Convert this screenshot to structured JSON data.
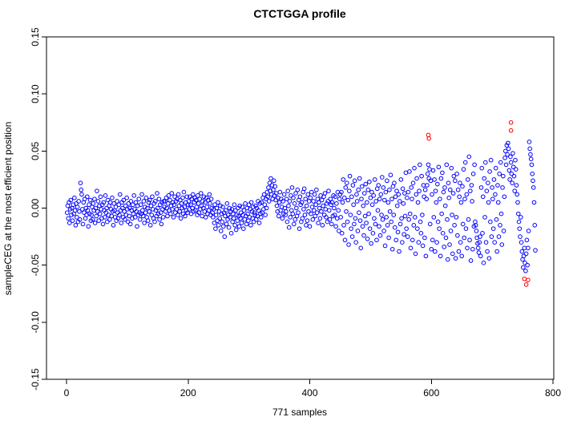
{
  "figure": {
    "title": "CTCTGGA profile"
  },
  "chart_data": {
    "type": "scatter",
    "title": "CTCTGGA profile",
    "xlabel": "771 samples",
    "ylabel": "sampleCEG at the most efficient position",
    "xlim": [
      0,
      800
    ],
    "ylim": [
      -0.15,
      0.15
    ],
    "x_ticks": [
      0,
      200,
      400,
      600,
      800
    ],
    "x_tick_labels": [
      "0",
      "200",
      "400",
      "600",
      "800"
    ],
    "y_ticks": [
      -0.15,
      -0.1,
      -0.05,
      0.0,
      0.05,
      0.1,
      0.15
    ],
    "y_tick_labels": [
      "-0.15",
      "-0.10",
      "-0.05",
      "0.00",
      "0.05",
      "0.10",
      "0.15"
    ],
    "grid": false,
    "legend": "none",
    "marker": "open-circle",
    "n_samples": 771,
    "series": [
      {
        "name": "samples",
        "color": "#0000FF",
        "x_start": 1,
        "y_scale": 0.001,
        "y": [
          -4,
          2,
          -9,
          5,
          -13,
          -1,
          7,
          -6,
          0,
          -11,
          3,
          -5,
          9,
          -2,
          -15,
          4,
          -8,
          1,
          -12,
          6,
          -3,
          -10,
          22,
          16,
          12,
          -1,
          -14,
          5,
          -4,
          8,
          -9,
          0,
          -6,
          10,
          -2,
          -16,
          3,
          -5,
          7,
          -11,
          -6,
          1,
          -10,
          4,
          -2,
          8,
          -13,
          0,
          -7,
          15,
          -3,
          6,
          -11,
          2,
          -5,
          10,
          -1,
          -9,
          3,
          -14,
          5,
          -2,
          -8,
          11,
          -4,
          0,
          -12,
          7,
          -6,
          2,
          -10,
          5,
          -1,
          -7,
          9,
          -3,
          -15,
          4,
          -2,
          -8,
          1,
          -11,
          6,
          -4,
          -9,
          3,
          -6,
          12,
          -2,
          -13,
          5,
          0,
          -8,
          7,
          -3,
          -10,
          2,
          -6,
          9,
          -1,
          -12,
          4,
          -7,
          0,
          -14,
          6,
          -2,
          -9,
          3,
          -5,
          11,
          -1,
          -8,
          5,
          -3,
          -16,
          2,
          -6,
          8,
          -4,
          -10,
          3,
          -5,
          12,
          -2,
          -7,
          6,
          -13,
          1,
          -4,
          9,
          -8,
          0,
          -11,
          5,
          -3,
          7,
          -15,
          2,
          -6,
          10,
          -1,
          -9,
          4,
          -12,
          6,
          -2,
          -7,
          13,
          0,
          -5,
          8,
          -10,
          3,
          -4,
          -14,
          5,
          -1,
          -8,
          6,
          1,
          6,
          -3,
          9,
          0,
          -7,
          4,
          11,
          -2,
          7,
          -5,
          2,
          13,
          -1,
          5,
          -8,
          3,
          10,
          -4,
          6,
          -1,
          8,
          -6,
          12,
          2,
          -3,
          7,
          -9,
          4,
          0,
          9,
          -5,
          14,
          1,
          -7,
          5,
          -2,
          10,
          -4,
          3,
          6,
          -1,
          10,
          3,
          -5,
          8,
          0,
          12,
          -3,
          5,
          9,
          -2,
          7,
          1,
          -6,
          11,
          4,
          -4,
          8,
          -1,
          13,
          2,
          -7,
          6,
          0,
          10,
          -3,
          5,
          -8,
          9,
          1,
          -5,
          7,
          -2,
          12,
          4,
          -6,
          8,
          0,
          -4,
          -8,
          -1,
          -13,
          3,
          -18,
          -6,
          0,
          -11,
          5,
          -15,
          -3,
          -9,
          2,
          -20,
          -5,
          -12,
          1,
          -16,
          -4,
          -25,
          -7,
          -2,
          -14,
          4,
          -10,
          -6,
          -17,
          0,
          -8,
          -3,
          -22,
          -1,
          -12,
          -5,
          -9,
          3,
          -15,
          -2,
          -19,
          -6,
          -11,
          0,
          -7,
          -16,
          2,
          -9,
          -4,
          -13,
          1,
          -6,
          -18,
          -2,
          -10,
          4,
          -7,
          -14,
          0,
          -5,
          -11,
          3,
          -8,
          -1,
          -15,
          5,
          -3,
          -9,
          1,
          -12,
          -4,
          -6,
          2,
          -10,
          0,
          -7,
          6,
          -2,
          -13,
          4,
          -5,
          -8,
          5,
          -4,
          9,
          -1,
          12,
          3,
          -6,
          8,
          0,
          14,
          10,
          18,
          6,
          22,
          15,
          26,
          12,
          20,
          8,
          16,
          24,
          11,
          19,
          7,
          13,
          2,
          -3,
          9,
          -7,
          5,
          14,
          -2,
          8,
          1,
          -9,
          6,
          -5,
          12,
          0,
          -6,
          -3,
          8,
          -12,
          15,
          2,
          -17,
          6,
          -8,
          11,
          -2,
          18,
          -5,
          9,
          -14,
          4,
          -10,
          13,
          0,
          -7,
          16,
          -4,
          7,
          -18,
          10,
          3,
          -12,
          5,
          -9,
          14,
          -1,
          17,
          -6,
          8,
          -15,
          2,
          -11,
          12,
          -3,
          6,
          -16,
          9,
          -5,
          14,
          1,
          -10,
          6,
          -2,
          12,
          -7,
          3,
          16,
          -4,
          8,
          -13,
          5,
          0,
          -9,
          11,
          -3,
          7,
          -15,
          2,
          10,
          -6,
          13,
          -1,
          -8,
          4,
          -12,
          6,
          15,
          -2,
          -10,
          8,
          3,
          -14,
          5,
          -7,
          11,
          0,
          -6,
          10,
          -16,
          4,
          -9,
          14,
          -2,
          -20,
          8,
          12,
          -8,
          14,
          -22,
          5,
          25,
          -15,
          9,
          -28,
          18,
          -3,
          22,
          -12,
          7,
          -32,
          15,
          28,
          -6,
          -18,
          10,
          -25,
          20,
          3,
          -14,
          24,
          -9,
          -30,
          12,
          6,
          -20,
          16,
          -4,
          26,
          -11,
          -35,
          8,
          19,
          -16,
          2,
          -24,
          13,
          -7,
          21,
          -13,
          5,
          -27,
          16,
          -5,
          23,
          -18,
          9,
          -31,
          14,
          3,
          -22,
          11,
          -9,
          25,
          -14,
          6,
          -28,
          17,
          -2,
          20,
          -16,
          8,
          -24,
          12,
          -6,
          27,
          -10,
          18,
          -20,
          7,
          -33,
          14,
          -8,
          24,
          -15,
          5,
          -26,
          16,
          -3,
          29,
          -12,
          8,
          -36,
          19,
          -6,
          22,
          -17,
          10,
          -28,
          15,
          2,
          -21,
          12,
          -38,
          6,
          -14,
          25,
          -9,
          -30,
          17,
          4,
          -23,
          13,
          -7,
          31,
          -18,
          9,
          -25,
          14,
          -10,
          32,
          -5,
          -35,
          18,
          8,
          -28,
          22,
          -15,
          35,
          -8,
          -40,
          12,
          26,
          -18,
          5,
          -30,
          15,
          38,
          -12,
          -22,
          28,
          -6,
          -33,
          20,
          10,
          -26,
          16,
          -42,
          8,
          20,
          30,
          38,
          26,
          34,
          -14,
          24,
          -36,
          12,
          -28,
          33,
          -8,
          25,
          -38,
          15,
          5,
          -30,
          21,
          -12,
          36,
          -18,
          8,
          -42,
          26,
          -5,
          31,
          -22,
          14,
          -34,
          18,
          2,
          -26,
          38,
          -10,
          -45,
          22,
          9,
          -32,
          16,
          -20,
          35,
          -6,
          -40,
          13,
          28,
          -15,
          24,
          -44,
          -8,
          30,
          -24,
          16,
          -38,
          10,
          22,
          -30,
          5,
          -42,
          19,
          -14,
          34,
          -26,
          8,
          40,
          -18,
          12,
          -35,
          25,
          -10,
          45,
          -28,
          15,
          -46,
          20,
          6,
          -36,
          30,
          -16,
          38,
          -12,
          -15,
          -20,
          -26,
          -31,
          -35,
          -39,
          -30,
          -25,
          -42,
          18,
          35,
          -22,
          10,
          -48,
          26,
          -8,
          40,
          -30,
          15,
          -38,
          22,
          5,
          -44,
          32,
          -12,
          42,
          -25,
          18,
          8,
          -18,
          25,
          -30,
          12,
          35,
          -10,
          -38,
          20,
          5,
          -25,
          30,
          -15,
          40,
          -5,
          -32,
          18,
          28,
          -20,
          10,
          44,
          50,
          38,
          55,
          47,
          57,
          52,
          33,
          25,
          45,
          40,
          30,
          22,
          48,
          36,
          28,
          15,
          42,
          34,
          20,
          12,
          5,
          -5,
          -12,
          -18,
          -25,
          -8,
          -30,
          -38,
          -45,
          -52,
          -42,
          -35,
          -48,
          -55,
          -40,
          -28,
          -50,
          -35,
          -20,
          58,
          52,
          47,
          43,
          38,
          30,
          24,
          18,
          5,
          -15,
          -37
        ]
      },
      {
        "name": "outliers",
        "color": "#FF0000",
        "y_scale": 0.001,
        "points": [
          [
            595,
            64
          ],
          [
            596,
            61
          ],
          [
            731,
            75
          ],
          [
            731,
            68
          ],
          [
            753,
            -62
          ],
          [
            759,
            -63
          ],
          [
            756,
            -67
          ]
        ]
      }
    ]
  }
}
